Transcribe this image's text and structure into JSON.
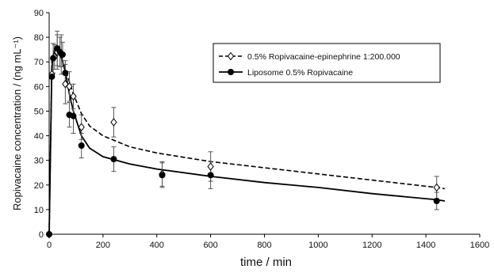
{
  "chart_data": {
    "type": "scatter",
    "xlabel": "time / min",
    "ylabel": "Ropivacaine concentration / (ng mL⁻¹)",
    "xlim": [
      0,
      1600
    ],
    "ylim": [
      0,
      90
    ],
    "xticks": [
      0,
      200,
      400,
      600,
      800,
      1000,
      1200,
      1400,
      1600
    ],
    "yticks": [
      0,
      10,
      20,
      30,
      40,
      50,
      60,
      70,
      80,
      90
    ],
    "grid": false,
    "legend_position": "top-right",
    "series": [
      {
        "name": "0.5% Ropivacaine-epinephrine 1:200.000",
        "marker": "open-diamond",
        "line_style": "dashed",
        "color": "#000000",
        "points": [
          {
            "x": 0,
            "y": 0,
            "err": 0
          },
          {
            "x": 10,
            "y": 65,
            "err": 0
          },
          {
            "x": 20,
            "y": 72,
            "err": 5
          },
          {
            "x": 30,
            "y": 74,
            "err": 7
          },
          {
            "x": 45,
            "y": 73,
            "err": 8
          },
          {
            "x": 60,
            "y": 61,
            "err": 8
          },
          {
            "x": 75,
            "y": 60,
            "err": 6
          },
          {
            "x": 90,
            "y": 56,
            "err": 5
          },
          {
            "x": 120,
            "y": 43.5,
            "err": 5
          },
          {
            "x": 240,
            "y": 45.5,
            "err": 6
          },
          {
            "x": 420,
            "y": 24.5,
            "err": 5
          },
          {
            "x": 600,
            "y": 27.5,
            "err": 6
          },
          {
            "x": 1440,
            "y": 19,
            "err": 4.5
          }
        ],
        "fit": [
          [
            0,
            0
          ],
          [
            10,
            70
          ],
          [
            20,
            75.5
          ],
          [
            30,
            75.5
          ],
          [
            45,
            72
          ],
          [
            60,
            67
          ],
          [
            75,
            62
          ],
          [
            90,
            57
          ],
          [
            120,
            49
          ],
          [
            150,
            44
          ],
          [
            200,
            40
          ],
          [
            300,
            35.5
          ],
          [
            400,
            33
          ],
          [
            600,
            29.5
          ],
          [
            800,
            27
          ],
          [
            1000,
            24.5
          ],
          [
            1200,
            22
          ],
          [
            1440,
            19
          ],
          [
            1470,
            18.5
          ]
        ]
      },
      {
        "name": "Liposome 0.5% Ropivacaine",
        "marker": "filled-circle",
        "line_style": "solid",
        "color": "#000000",
        "points": [
          {
            "x": 0,
            "y": 0,
            "err": 0
          },
          {
            "x": 10,
            "y": 64,
            "err": 0
          },
          {
            "x": 15,
            "y": 71.5,
            "err": 6
          },
          {
            "x": 30,
            "y": 75.5,
            "err": 7
          },
          {
            "x": 40,
            "y": 74,
            "err": 6
          },
          {
            "x": 50,
            "y": 73,
            "err": 5
          },
          {
            "x": 60,
            "y": 65.5,
            "err": 5
          },
          {
            "x": 75,
            "y": 48.5,
            "err": 5
          },
          {
            "x": 90,
            "y": 48,
            "err": 7
          },
          {
            "x": 120,
            "y": 36,
            "err": 5
          },
          {
            "x": 240,
            "y": 30.5,
            "err": 5
          },
          {
            "x": 420,
            "y": 24,
            "err": 5
          },
          {
            "x": 600,
            "y": 24,
            "err": 5.5
          },
          {
            "x": 1440,
            "y": 13.5,
            "err": 3.5
          }
        ],
        "fit": [
          [
            0,
            0
          ],
          [
            10,
            68
          ],
          [
            20,
            75
          ],
          [
            30,
            75.5
          ],
          [
            45,
            72
          ],
          [
            60,
            66
          ],
          [
            75,
            57
          ],
          [
            90,
            50
          ],
          [
            120,
            40
          ],
          [
            150,
            35
          ],
          [
            200,
            31.5
          ],
          [
            300,
            28.5
          ],
          [
            400,
            26.5
          ],
          [
            600,
            23.5
          ],
          [
            800,
            21
          ],
          [
            1000,
            19
          ],
          [
            1200,
            16.5
          ],
          [
            1440,
            14
          ],
          [
            1470,
            13.5
          ]
        ]
      }
    ]
  }
}
